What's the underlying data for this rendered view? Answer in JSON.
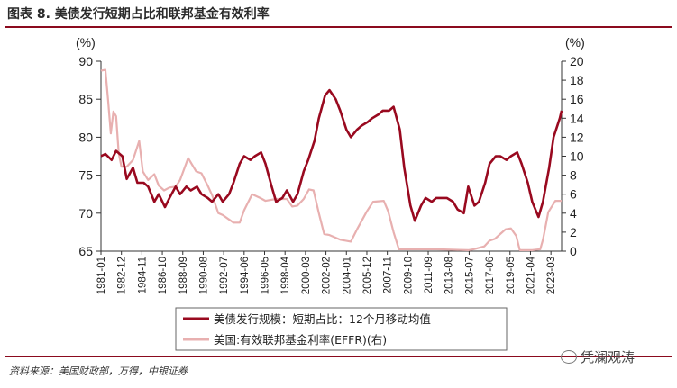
{
  "header": {
    "title": "图表 8. 美债发行短期占比和联邦基金有效利率"
  },
  "footer": {
    "source": "资料来源：美国财政部，万得，中银证券",
    "watermark": "凭澜观涛"
  },
  "colors": {
    "series1": "#99091f",
    "series2": "#e8b0b0",
    "rule": "#8b0a1e",
    "axis": "#333333"
  },
  "chart_data": {
    "type": "line",
    "left_axis": {
      "unit": "(%)",
      "ylim": [
        65,
        90
      ],
      "ticks": [
        65,
        70,
        75,
        80,
        85,
        90
      ]
    },
    "right_axis": {
      "unit": "(%)",
      "ylim": [
        0,
        20
      ],
      "ticks": [
        0,
        2,
        4,
        6,
        8,
        10,
        12,
        14,
        16,
        18,
        20
      ]
    },
    "x_range": [
      "1981-01",
      "2024-03"
    ],
    "x_ticks": [
      "1981-01",
      "1982-12",
      "1984-11",
      "1986-10",
      "1988-09",
      "1990-08",
      "1992-07",
      "1994-06",
      "1996-05",
      "1998-04",
      "2000-03",
      "2002-02",
      "2004-01",
      "2005-12",
      "2007-11",
      "2009-10",
      "2011-09",
      "2013-08",
      "2015-07",
      "2017-06",
      "2019-05",
      "2021-04",
      "2023-03"
    ],
    "legend_placement": "bottom-center",
    "series": [
      {
        "name": "美债发行规模：短期占比：12个月移动均值",
        "axis": "left",
        "points": [
          [
            "1981-01",
            77.5
          ],
          [
            "1981-06",
            77.8
          ],
          [
            "1982-01",
            77.0
          ],
          [
            "1982-06",
            78.2
          ],
          [
            "1983-01",
            77.5
          ],
          [
            "1983-06",
            74.5
          ],
          [
            "1984-01",
            76.0
          ],
          [
            "1984-06",
            74.0
          ],
          [
            "1985-01",
            74.0
          ],
          [
            "1985-06",
            73.5
          ],
          [
            "1986-01",
            71.5
          ],
          [
            "1986-06",
            72.5
          ],
          [
            "1987-01",
            70.8
          ],
          [
            "1987-06",
            72.0
          ],
          [
            "1988-01",
            73.5
          ],
          [
            "1988-06",
            72.5
          ],
          [
            "1989-01",
            73.5
          ],
          [
            "1989-06",
            73.0
          ],
          [
            "1990-01",
            73.5
          ],
          [
            "1990-06",
            72.5
          ],
          [
            "1991-01",
            72.0
          ],
          [
            "1991-06",
            71.5
          ],
          [
            "1992-01",
            72.5
          ],
          [
            "1992-06",
            71.5
          ],
          [
            "1993-01",
            72.5
          ],
          [
            "1993-06",
            74.0
          ],
          [
            "1994-01",
            76.5
          ],
          [
            "1994-06",
            77.5
          ],
          [
            "1995-01",
            77.0
          ],
          [
            "1995-06",
            77.5
          ],
          [
            "1996-01",
            78.0
          ],
          [
            "1996-06",
            76.5
          ],
          [
            "1997-01",
            73.5
          ],
          [
            "1997-06",
            71.5
          ],
          [
            "1998-01",
            72.0
          ],
          [
            "1998-06",
            73.0
          ],
          [
            "1999-01",
            71.5
          ],
          [
            "1999-06",
            72.5
          ],
          [
            "2000-01",
            75.5
          ],
          [
            "2000-06",
            77.0
          ],
          [
            "2001-01",
            79.5
          ],
          [
            "2001-06",
            82.5
          ],
          [
            "2002-01",
            85.5
          ],
          [
            "2002-06",
            86.2
          ],
          [
            "2003-01",
            85.0
          ],
          [
            "2003-06",
            83.5
          ],
          [
            "2004-01",
            81.0
          ],
          [
            "2004-06",
            80.0
          ],
          [
            "2005-01",
            81.0
          ],
          [
            "2005-06",
            81.5
          ],
          [
            "2006-01",
            82.0
          ],
          [
            "2006-06",
            82.5
          ],
          [
            "2007-01",
            83.0
          ],
          [
            "2007-06",
            83.5
          ],
          [
            "2008-01",
            83.5
          ],
          [
            "2008-06",
            84.0
          ],
          [
            "2009-01",
            81.0
          ],
          [
            "2009-06",
            76.0
          ],
          [
            "2010-01",
            71.0
          ],
          [
            "2010-06",
            69.0
          ],
          [
            "2011-01",
            71.0
          ],
          [
            "2011-06",
            72.0
          ],
          [
            "2012-01",
            71.5
          ],
          [
            "2012-06",
            72.0
          ],
          [
            "2013-01",
            72.0
          ],
          [
            "2013-06",
            72.0
          ],
          [
            "2014-01",
            71.5
          ],
          [
            "2014-06",
            70.5
          ],
          [
            "2015-01",
            70.0
          ],
          [
            "2015-06",
            73.5
          ],
          [
            "2016-01",
            71.0
          ],
          [
            "2016-06",
            71.5
          ],
          [
            "2017-01",
            74.0
          ],
          [
            "2017-06",
            76.5
          ],
          [
            "2018-01",
            77.5
          ],
          [
            "2018-06",
            77.5
          ],
          [
            "2019-01",
            77.0
          ],
          [
            "2019-06",
            77.5
          ],
          [
            "2020-01",
            78.0
          ],
          [
            "2020-06",
            76.5
          ],
          [
            "2021-01",
            74.0
          ],
          [
            "2021-06",
            71.5
          ],
          [
            "2022-01",
            69.5
          ],
          [
            "2022-06",
            71.5
          ],
          [
            "2023-01",
            76.0
          ],
          [
            "2023-06",
            80.0
          ],
          [
            "2024-01",
            82.5
          ],
          [
            "2024-03",
            83.5
          ]
        ]
      },
      {
        "name": "美国:有效联邦基金利率(EFFR)(右)",
        "axis": "right",
        "points": [
          [
            "1981-01",
            19.0
          ],
          [
            "1981-06",
            19.1
          ],
          [
            "1981-09",
            15.9
          ],
          [
            "1981-12",
            12.4
          ],
          [
            "1982-03",
            14.7
          ],
          [
            "1982-06",
            14.2
          ],
          [
            "1982-09",
            10.3
          ],
          [
            "1982-12",
            8.9
          ],
          [
            "1983-06",
            8.9
          ],
          [
            "1984-01",
            9.6
          ],
          [
            "1984-08",
            11.6
          ],
          [
            "1984-12",
            8.4
          ],
          [
            "1985-06",
            7.5
          ],
          [
            "1986-01",
            8.1
          ],
          [
            "1986-06",
            6.9
          ],
          [
            "1986-12",
            6.4
          ],
          [
            "1987-06",
            6.7
          ],
          [
            "1988-01",
            6.8
          ],
          [
            "1988-06",
            7.5
          ],
          [
            "1989-03",
            9.8
          ],
          [
            "1989-12",
            8.4
          ],
          [
            "1990-06",
            8.2
          ],
          [
            "1991-01",
            6.9
          ],
          [
            "1991-06",
            5.9
          ],
          [
            "1992-01",
            4.0
          ],
          [
            "1992-06",
            3.8
          ],
          [
            "1993-06",
            3.0
          ],
          [
            "1994-01",
            3.0
          ],
          [
            "1994-06",
            4.3
          ],
          [
            "1995-03",
            6.0
          ],
          [
            "1995-12",
            5.6
          ],
          [
            "1996-06",
            5.3
          ],
          [
            "1997-06",
            5.5
          ],
          [
            "1998-06",
            5.5
          ],
          [
            "1998-12",
            4.7
          ],
          [
            "1999-06",
            4.8
          ],
          [
            "2000-01",
            5.5
          ],
          [
            "2000-07",
            6.5
          ],
          [
            "2000-12",
            6.4
          ],
          [
            "2001-06",
            4.0
          ],
          [
            "2001-12",
            1.8
          ],
          [
            "2002-06",
            1.7
          ],
          [
            "2003-06",
            1.2
          ],
          [
            "2004-06",
            1.0
          ],
          [
            "2005-01",
            2.3
          ],
          [
            "2005-12",
            4.2
          ],
          [
            "2006-07",
            5.2
          ],
          [
            "2007-07",
            5.3
          ],
          [
            "2007-12",
            4.2
          ],
          [
            "2008-06",
            2.0
          ],
          [
            "2008-12",
            0.2
          ],
          [
            "2009-06",
            0.2
          ],
          [
            "2012-06",
            0.2
          ],
          [
            "2015-06",
            0.1
          ],
          [
            "2015-12",
            0.2
          ],
          [
            "2016-12",
            0.5
          ],
          [
            "2017-06",
            1.1
          ],
          [
            "2017-12",
            1.3
          ],
          [
            "2018-06",
            1.8
          ],
          [
            "2018-12",
            2.3
          ],
          [
            "2019-06",
            2.4
          ],
          [
            "2019-12",
            1.6
          ],
          [
            "2020-04",
            0.1
          ],
          [
            "2021-06",
            0.1
          ],
          [
            "2022-03",
            0.2
          ],
          [
            "2022-06",
            1.2
          ],
          [
            "2022-09",
            2.6
          ],
          [
            "2022-12",
            4.1
          ],
          [
            "2023-06",
            5.0
          ],
          [
            "2023-08",
            5.3
          ],
          [
            "2024-03",
            5.3
          ]
        ]
      }
    ]
  }
}
